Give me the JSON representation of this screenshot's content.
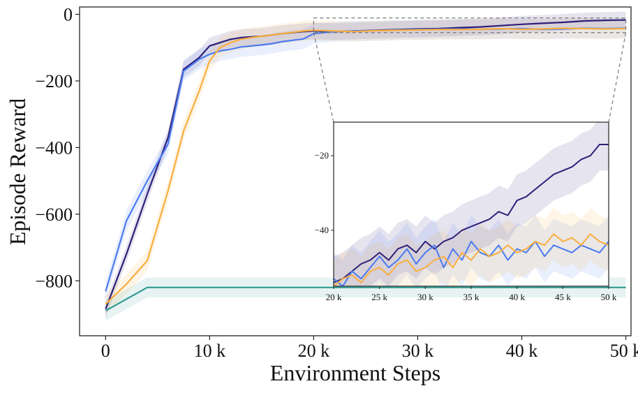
{
  "chart_data": {
    "type": "line",
    "xlabel": "Environment Steps",
    "ylabel": "Episode Reward",
    "xlim": [
      -2500,
      50500
    ],
    "ylim": [
      -965,
      22
    ],
    "xticks": [
      0,
      10000,
      20000,
      30000,
      40000,
      50000
    ],
    "xtick_labels": [
      "0",
      "10 k",
      "20 k",
      "30 k",
      "40 k",
      "50 k"
    ],
    "yticks": [
      0,
      -200,
      -400,
      -600,
      -800
    ],
    "ytick_labels": [
      "0",
      "−200",
      "−400",
      "−600",
      "−800"
    ],
    "grid": false,
    "legend": "none",
    "series": [
      {
        "color": "#2e1f78",
        "x": [
          0,
          2000,
          4000,
          6000,
          7500,
          9000,
          10000,
          11000,
          12000,
          13000,
          14000,
          15000,
          16000,
          17000,
          18000,
          19000,
          20000,
          22000,
          24000,
          26000,
          28000,
          30000,
          32000,
          34000,
          36000,
          38000,
          40000,
          42000,
          44000,
          46000,
          48000,
          50000
        ],
        "y": [
          -885,
          -720,
          -540,
          -370,
          -165,
          -130,
          -95,
          -85,
          -75,
          -70,
          -68,
          -66,
          -62,
          -58,
          -55,
          -52,
          -50,
          -52,
          -50,
          -48,
          -46,
          -44,
          -43,
          -40,
          -38,
          -34,
          -30,
          -27,
          -24,
          -20,
          -18,
          -17
        ],
        "band": 25
      },
      {
        "color": "#4a7bf0",
        "x": [
          0,
          2000,
          4000,
          6000,
          7500,
          9000,
          10000,
          11000,
          12000,
          13000,
          14000,
          15000,
          16000,
          17000,
          18000,
          19000,
          20000,
          22000,
          24000,
          26000,
          28000,
          30000,
          32000,
          34000,
          36000,
          38000,
          40000,
          42000,
          44000,
          46000,
          48000,
          50000
        ],
        "y": [
          -832,
          -620,
          -500,
          -390,
          -170,
          -135,
          -120,
          -110,
          -105,
          -98,
          -95,
          -92,
          -88,
          -82,
          -78,
          -74,
          -58,
          -52,
          -50,
          -49,
          -47,
          -46,
          -45,
          -44,
          -45,
          -44,
          -43,
          -45,
          -44,
          -42,
          -43,
          -42
        ],
        "band": 30
      },
      {
        "color": "#f9ae3d",
        "x": [
          0,
          2000,
          4000,
          6000,
          7500,
          9000,
          10000,
          11000,
          12000,
          13000,
          14000,
          15000,
          16000,
          17000,
          18000,
          19000,
          20000,
          22000,
          24000,
          26000,
          28000,
          30000,
          32000,
          34000,
          36000,
          38000,
          40000,
          42000,
          44000,
          46000,
          48000,
          50000
        ],
        "y": [
          -870,
          -810,
          -740,
          -530,
          -350,
          -230,
          -140,
          -100,
          -85,
          -75,
          -70,
          -66,
          -62,
          -58,
          -54,
          -50,
          -48,
          -50,
          -52,
          -49,
          -48,
          -47,
          -46,
          -46,
          -45,
          -43,
          -45,
          -44,
          -42,
          -43,
          -44,
          -43
        ],
        "band": 30
      },
      {
        "color": "#2f9b93",
        "x": [
          0,
          4000,
          50000
        ],
        "y": [
          -890,
          -820,
          -820
        ],
        "band": 30
      }
    ],
    "inset": {
      "xlim": [
        20000,
        50000
      ],
      "ylim": [
        -55,
        -11
      ],
      "xticks": [
        20000,
        25000,
        30000,
        35000,
        40000,
        45000,
        50000
      ],
      "xtick_labels": [
        "20 k",
        "25 k",
        "30 k",
        "35 k",
        "40 k",
        "45 k",
        "50 k"
      ],
      "yticks": [
        -20,
        -40
      ],
      "ytick_labels": [
        "−20",
        "−40"
      ],
      "series": [
        {
          "color": "#2e1f78",
          "x": [
            20000,
            21000,
            22000,
            23000,
            24000,
            25000,
            26000,
            27000,
            28000,
            29000,
            30000,
            31000,
            32000,
            33000,
            34000,
            35000,
            36000,
            37000,
            38000,
            39000,
            40000,
            41000,
            42000,
            43000,
            44000,
            45000,
            46000,
            47000,
            48000,
            49000,
            50000
          ],
          "y": [
            -54,
            -53,
            -51,
            -49,
            -48,
            -46,
            -48,
            -45,
            -44,
            -46,
            -43,
            -45,
            -43,
            -42,
            -40,
            -39,
            -38,
            -37,
            -35,
            -36,
            -32,
            -31,
            -29,
            -27,
            -25,
            -24,
            -23,
            -21,
            -20,
            -17,
            -17
          ],
          "band": 7
        },
        {
          "color": "#4a7bf0",
          "x": [
            20000,
            21000,
            22000,
            23000,
            24000,
            25000,
            26000,
            27000,
            28000,
            29000,
            30000,
            31000,
            32000,
            33000,
            34000,
            35000,
            36000,
            37000,
            38000,
            39000,
            40000,
            41000,
            42000,
            43000,
            44000,
            45000,
            46000,
            47000,
            48000,
            49000,
            50000
          ],
          "y": [
            -53,
            -55,
            -51,
            -53,
            -50,
            -47,
            -50,
            -48,
            -45,
            -49,
            -46,
            -44,
            -50,
            -45,
            -48,
            -43,
            -46,
            -47,
            -44,
            -48,
            -45,
            -46,
            -43,
            -47,
            -44,
            -45,
            -46,
            -44,
            -45,
            -46,
            -43
          ],
          "band": 7
        },
        {
          "color": "#f9ae3d",
          "x": [
            20000,
            21000,
            22000,
            23000,
            24000,
            25000,
            26000,
            27000,
            28000,
            29000,
            30000,
            31000,
            32000,
            33000,
            34000,
            35000,
            36000,
            37000,
            38000,
            39000,
            40000,
            41000,
            42000,
            43000,
            44000,
            45000,
            46000,
            47000,
            48000,
            49000,
            50000
          ],
          "y": [
            -55,
            -53,
            -52,
            -54,
            -51,
            -50,
            -52,
            -49,
            -48,
            -51,
            -50,
            -48,
            -47,
            -50,
            -46,
            -48,
            -45,
            -47,
            -46,
            -44,
            -46,
            -45,
            -43,
            -44,
            -41,
            -43,
            -42,
            -44,
            -41,
            -43,
            -44
          ],
          "band": 7
        }
      ]
    }
  }
}
